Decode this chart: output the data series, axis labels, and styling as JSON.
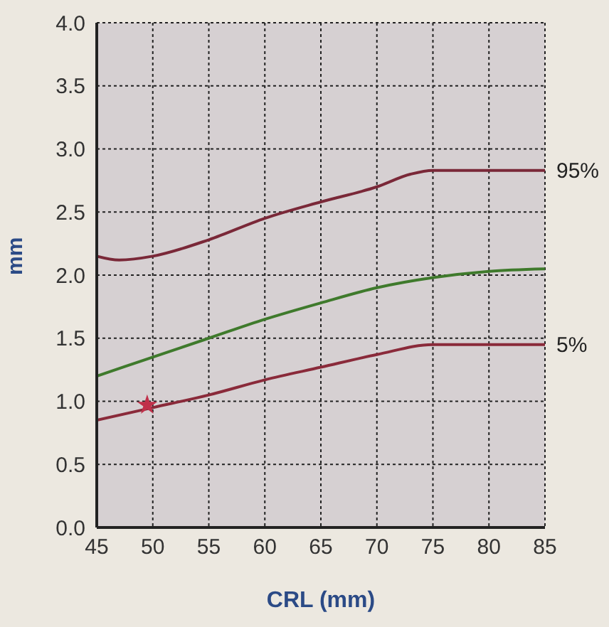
{
  "chart_data": {
    "type": "line",
    "xlabel": "CRL (mm)",
    "ylabel": "mm",
    "xlim": [
      45,
      85
    ],
    "xticks": [
      45,
      50,
      55,
      60,
      65,
      70,
      75,
      80,
      85
    ],
    "ylim": [
      0,
      4
    ],
    "yticks": [
      {
        "value": 0,
        "label": "0.0"
      },
      0.5,
      {
        "value": 1,
        "label": "1.0"
      },
      1.5,
      {
        "value": 2,
        "label": "2.0"
      },
      2.5,
      {
        "value": 3,
        "label": "3.0"
      },
      3.5,
      {
        "value": 4,
        "label": "4.0"
      }
    ],
    "grid": true,
    "marker": "none",
    "series": [
      {
        "name": "95%",
        "color": "#7a2838",
        "x": [
          45,
          47,
          50,
          55,
          60,
          65,
          70,
          73,
          75,
          80,
          85
        ],
        "values": [
          2.15,
          2.12,
          2.15,
          2.28,
          2.45,
          2.58,
          2.7,
          2.8,
          2.83,
          2.83,
          2.83
        ]
      },
      {
        "color": "#3f7a2c",
        "x": [
          45,
          50,
          55,
          60,
          65,
          70,
          75,
          80,
          85
        ],
        "values": [
          1.2,
          1.35,
          1.5,
          1.65,
          1.78,
          1.9,
          1.98,
          2.03,
          2.05
        ]
      },
      {
        "name": "5%",
        "color": "#8a2a3a",
        "x": [
          45,
          50,
          55,
          60,
          65,
          70,
          75,
          80,
          85
        ],
        "values": [
          0.85,
          0.95,
          1.05,
          1.17,
          1.27,
          1.37,
          1.45,
          1.45,
          1.45
        ]
      },
      {
        "type": "scatter",
        "marker": "star",
        "color": "#c0304a",
        "x": [
          49.5
        ],
        "values": [
          0.97
        ]
      }
    ]
  }
}
